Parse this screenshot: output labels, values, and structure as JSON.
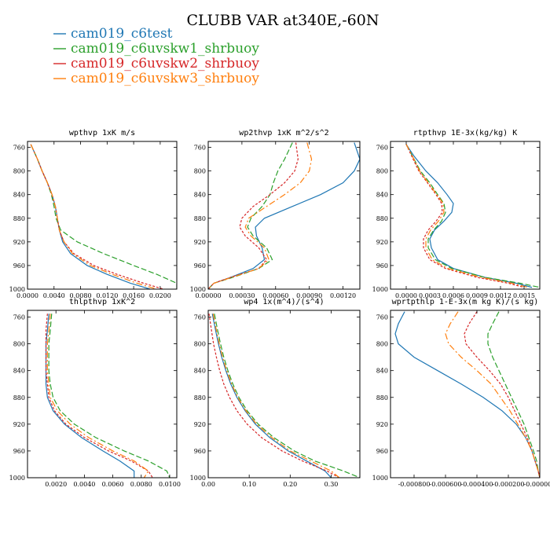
{
  "figure": {
    "title": "CLUBB VAR at340E,-60N",
    "legend": [
      {
        "label": "cam019_c6test",
        "color": "#1f77b4"
      },
      {
        "label": "cam019_c6uvskw1_shrbuoy",
        "color": "#2ca02c"
      },
      {
        "label": "cam019_c6uvskw2_shrbuoy",
        "color": "#d62728"
      },
      {
        "label": "cam019_c6uvskw3_shrbuoy",
        "color": "#ff7f0e"
      }
    ]
  },
  "chart_data": [
    {
      "type": "line",
      "title": "wpthvp  1xK m/s",
      "xlim": [
        0,
        0.0225
      ],
      "ylim": [
        1000,
        750
      ],
      "xticks": [
        {
          "value": 0.0,
          "label": "0.0000"
        },
        {
          "value": 0.004,
          "label": "0.0040"
        },
        {
          "value": 0.008,
          "label": "0.0080"
        },
        {
          "value": 0.012,
          "label": "0.0120"
        },
        {
          "value": 0.016,
          "label": "0.0160"
        },
        {
          "value": 0.02,
          "label": "0.0200"
        }
      ],
      "yticks": [
        {
          "value": 760,
          "label": "760"
        },
        {
          "value": 800,
          "label": "800"
        },
        {
          "value": 840,
          "label": "840"
        },
        {
          "value": 880,
          "label": "880"
        },
        {
          "value": 920,
          "label": "920"
        },
        {
          "value": 960,
          "label": "960"
        },
        {
          "value": 1000,
          "label": "1000"
        }
      ],
      "y": [
        755,
        780,
        800,
        820,
        840,
        860,
        880,
        900,
        920,
        940,
        960,
        975,
        990,
        1000
      ],
      "series": [
        {
          "name": "cam019_c6test",
          "x": [
            0.0005,
            0.0015,
            0.0022,
            0.003,
            0.0037,
            0.0042,
            0.0045,
            0.0048,
            0.0053,
            0.0065,
            0.009,
            0.012,
            0.0155,
            0.0185
          ]
        },
        {
          "name": "cam019_c6uvskw1_shrbuoy",
          "x": [
            0.0005,
            0.0015,
            0.0022,
            0.003,
            0.0036,
            0.004,
            0.0043,
            0.005,
            0.0075,
            0.0115,
            0.016,
            0.0195,
            0.0225,
            0.0225
          ]
        },
        {
          "name": "cam019_c6uvskw2_shrbuoy",
          "x": [
            0.0005,
            0.0015,
            0.0022,
            0.003,
            0.0037,
            0.0042,
            0.0045,
            0.0048,
            0.0055,
            0.007,
            0.01,
            0.0135,
            0.0175,
            0.0205
          ]
        },
        {
          "name": "cam019_c6uvskw3_shrbuoy",
          "x": [
            0.0005,
            0.0015,
            0.0022,
            0.003,
            0.0037,
            0.0042,
            0.0045,
            0.0048,
            0.0055,
            0.0068,
            0.0095,
            0.0128,
            0.0165,
            0.0195
          ]
        }
      ]
    },
    {
      "type": "line",
      "title": "wp2thvp  1xK m^2/s^2",
      "xlim": [
        0,
        0.00135
      ],
      "ylim": [
        1000,
        750
      ],
      "xticks": [
        {
          "value": 0.0,
          "label": "0.00000"
        },
        {
          "value": 0.0003,
          "label": "0.00030"
        },
        {
          "value": 0.0006,
          "label": "0.00060"
        },
        {
          "value": 0.0009,
          "label": "0.00090"
        },
        {
          "value": 0.0012,
          "label": "0.00120"
        }
      ],
      "yticks": [
        {
          "value": 760,
          "label": "760"
        },
        {
          "value": 800,
          "label": "800"
        },
        {
          "value": 840,
          "label": "840"
        },
        {
          "value": 880,
          "label": "880"
        },
        {
          "value": 920,
          "label": "920"
        },
        {
          "value": 960,
          "label": "960"
        },
        {
          "value": 1000,
          "label": "1000"
        }
      ],
      "y": [
        752,
        780,
        800,
        820,
        840,
        860,
        880,
        895,
        910,
        930,
        950,
        965,
        980,
        990,
        1000
      ],
      "series": [
        {
          "name": "cam019_c6test",
          "x": [
            0.0013,
            0.00135,
            0.0013,
            0.0012,
            0.001,
            0.00075,
            0.0005,
            0.00042,
            0.00043,
            0.00048,
            0.0005,
            0.0004,
            0.0002,
            5e-05,
            0.0
          ]
        },
        {
          "name": "cam019_c6uvskw1_shrbuoy",
          "x": [
            0.00075,
            0.00068,
            0.00062,
            0.00058,
            0.00055,
            0.00048,
            0.00038,
            0.00035,
            0.0004,
            0.00052,
            0.00057,
            0.00045,
            0.00022,
            5e-05,
            0.0
          ]
        },
        {
          "name": "cam019_c6uvskw2_shrbuoy",
          "x": [
            0.00078,
            0.0008,
            0.00077,
            0.00068,
            0.00055,
            0.0004,
            0.0003,
            0.00028,
            0.00033,
            0.00045,
            0.00052,
            0.00045,
            0.0002,
            5e-05,
            0.0
          ]
        },
        {
          "name": "cam019_c6uvskw3_shrbuoy",
          "x": [
            0.00088,
            0.00092,
            0.0009,
            0.00082,
            0.00068,
            0.00052,
            0.00036,
            0.00033,
            0.00038,
            0.0005,
            0.00054,
            0.00045,
            0.00021,
            5e-05,
            0.0
          ]
        }
      ]
    },
    {
      "type": "line",
      "title": "rtpthvp  1E-3x(kg/kg) K",
      "xlim": [
        -0.0002,
        0.0017
      ],
      "ylim": [
        1000,
        750
      ],
      "xticks": [
        {
          "value": 0.0,
          "label": "0.0000"
        },
        {
          "value": 0.0003,
          "label": "0.0003"
        },
        {
          "value": 0.0006,
          "label": "0.0006"
        },
        {
          "value": 0.0009,
          "label": "0.0009"
        },
        {
          "value": 0.0012,
          "label": "0.0012"
        },
        {
          "value": 0.0015,
          "label": "0.0015"
        }
      ],
      "yticks": [
        {
          "value": 760,
          "label": "760"
        },
        {
          "value": 800,
          "label": "800"
        },
        {
          "value": 840,
          "label": "840"
        },
        {
          "value": 880,
          "label": "880"
        },
        {
          "value": 920,
          "label": "920"
        },
        {
          "value": 960,
          "label": "960"
        },
        {
          "value": 1000,
          "label": "1000"
        }
      ],
      "y": [
        755,
        775,
        800,
        820,
        840,
        855,
        870,
        885,
        900,
        915,
        930,
        950,
        965,
        980,
        990,
        997
      ],
      "series": [
        {
          "name": "cam019_c6test",
          "x": [
            0.0,
            0.0001,
            0.00025,
            0.0004,
            0.00052,
            0.0006,
            0.00058,
            0.00048,
            0.00036,
            0.0003,
            0.00032,
            0.0004,
            0.0006,
            0.001,
            0.0014,
            0.0016
          ]
        },
        {
          "name": "cam019_c6uvskw1_shrbuoy",
          "x": [
            0.0,
            8e-05,
            0.00018,
            0.0003,
            0.0004,
            0.00048,
            0.0005,
            0.00045,
            0.00035,
            0.00028,
            0.00028,
            0.00037,
            0.00058,
            0.001,
            0.00145,
            0.0017
          ]
        },
        {
          "name": "cam019_c6uvskw2_shrbuoy",
          "x": [
            0.0,
            7e-05,
            0.00016,
            0.00027,
            0.00038,
            0.00045,
            0.00046,
            0.00038,
            0.00028,
            0.00022,
            0.00022,
            0.0003,
            0.0005,
            0.0009,
            0.0013,
            0.0015
          ]
        },
        {
          "name": "cam019_c6uvskw3_shrbuoy",
          "x": [
            0.0,
            8e-05,
            0.00017,
            0.00028,
            0.00039,
            0.00047,
            0.00048,
            0.00041,
            0.00031,
            0.00025,
            0.00025,
            0.00033,
            0.00053,
            0.00095,
            0.00135,
            0.00155
          ]
        }
      ]
    },
    {
      "type": "line",
      "title": "thlpthvp  1xK^2",
      "xlim": [
        0,
        0.0105
      ],
      "ylim": [
        1000,
        750
      ],
      "xticks": [
        {
          "value": 0.002,
          "label": "0.0020"
        },
        {
          "value": 0.004,
          "label": "0.0040"
        },
        {
          "value": 0.006,
          "label": "0.0060"
        },
        {
          "value": 0.008,
          "label": "0.0080"
        },
        {
          "value": 0.01,
          "label": "0.0100"
        }
      ],
      "yticks": [
        {
          "value": 760,
          "label": "760"
        },
        {
          "value": 800,
          "label": "800"
        },
        {
          "value": 840,
          "label": "840"
        },
        {
          "value": 880,
          "label": "880"
        },
        {
          "value": 920,
          "label": "920"
        },
        {
          "value": 960,
          "label": "960"
        },
        {
          "value": 1000,
          "label": "1000"
        }
      ],
      "y": [
        755,
        780,
        800,
        820,
        840,
        860,
        880,
        900,
        920,
        940,
        960,
        975,
        990,
        1000
      ],
      "series": [
        {
          "name": "cam019_c6test",
          "x": [
            0.0015,
            0.0014,
            0.0013,
            0.0013,
            0.0013,
            0.0013,
            0.0014,
            0.0018,
            0.0026,
            0.0038,
            0.0053,
            0.0065,
            0.0075,
            0.0075
          ]
        },
        {
          "name": "cam019_c6uvskw1_shrbuoy",
          "x": [
            0.0017,
            0.0016,
            0.0015,
            0.0015,
            0.0015,
            0.0016,
            0.0018,
            0.0023,
            0.0033,
            0.0048,
            0.0068,
            0.0085,
            0.0098,
            0.01
          ]
        },
        {
          "name": "cam019_c6uvskw2_shrbuoy",
          "x": [
            0.0014,
            0.0013,
            0.0013,
            0.0013,
            0.0013,
            0.0014,
            0.0015,
            0.0019,
            0.0027,
            0.004,
            0.0057,
            0.0073,
            0.0085,
            0.0088
          ]
        },
        {
          "name": "cam019_c6uvskw3_shrbuoy",
          "x": [
            0.0016,
            0.0015,
            0.0014,
            0.0014,
            0.0014,
            0.0015,
            0.0016,
            0.0021,
            0.003,
            0.0043,
            0.006,
            0.0075,
            0.0085,
            0.0082
          ]
        }
      ]
    },
    {
      "type": "line",
      "title": "wp4  1x(m^4)/(s^4)",
      "xlim": [
        0,
        0.37
      ],
      "ylim": [
        1000,
        750
      ],
      "xticks": [
        {
          "value": 0.0,
          "label": "0.00"
        },
        {
          "value": 0.1,
          "label": "0.10"
        },
        {
          "value": 0.2,
          "label": "0.20"
        },
        {
          "value": 0.3,
          "label": "0.30"
        }
      ],
      "yticks": [
        {
          "value": 760,
          "label": "760"
        },
        {
          "value": 800,
          "label": "800"
        },
        {
          "value": 840,
          "label": "840"
        },
        {
          "value": 880,
          "label": "880"
        },
        {
          "value": 920,
          "label": "920"
        },
        {
          "value": 960,
          "label": "960"
        },
        {
          "value": 1000,
          "label": "1000"
        }
      ],
      "y": [
        755,
        780,
        800,
        820,
        840,
        860,
        880,
        900,
        920,
        940,
        960,
        975,
        990,
        1000
      ],
      "series": [
        {
          "name": "cam019_c6test",
          "x": [
            0.01,
            0.018,
            0.025,
            0.033,
            0.043,
            0.055,
            0.07,
            0.09,
            0.115,
            0.15,
            0.195,
            0.24,
            0.285,
            0.3
          ]
        },
        {
          "name": "cam019_c6uvskw1_shrbuoy",
          "x": [
            0.015,
            0.023,
            0.03,
            0.038,
            0.048,
            0.06,
            0.075,
            0.095,
            0.122,
            0.16,
            0.21,
            0.26,
            0.33,
            0.37
          ]
        },
        {
          "name": "cam019_c6uvskw2_shrbuoy",
          "x": [
            0.002,
            0.008,
            0.013,
            0.02,
            0.028,
            0.038,
            0.052,
            0.07,
            0.095,
            0.13,
            0.18,
            0.23,
            0.29,
            0.32
          ]
        },
        {
          "name": "cam019_c6uvskw3_shrbuoy",
          "x": [
            0.012,
            0.02,
            0.027,
            0.035,
            0.045,
            0.057,
            0.072,
            0.092,
            0.118,
            0.155,
            0.2,
            0.25,
            0.3,
            0.32
          ]
        }
      ]
    },
    {
      "type": "line",
      "title": "wprtpthlp  1-E-3x(m kg K)/(s kg)",
      "xlim": [
        -0.00095,
        0.0
      ],
      "ylim": [
        1000,
        750
      ],
      "xticks": [
        {
          "value": -0.0008,
          "label": "-0.000800"
        },
        {
          "value": -0.0006,
          "label": "-0.000600"
        },
        {
          "value": -0.0004,
          "label": "-0.000400"
        },
        {
          "value": -0.0002,
          "label": "-0.000200"
        },
        {
          "value": 0.0,
          "label": "-0.000000"
        }
      ],
      "yticks": [
        {
          "value": 760,
          "label": "760"
        },
        {
          "value": 800,
          "label": "800"
        },
        {
          "value": 840,
          "label": "840"
        },
        {
          "value": 880,
          "label": "880"
        },
        {
          "value": 920,
          "label": "920"
        },
        {
          "value": 960,
          "label": "960"
        },
        {
          "value": 1000,
          "label": "1000"
        }
      ],
      "y": [
        752,
        770,
        785,
        800,
        820,
        840,
        860,
        880,
        900,
        920,
        940,
        960,
        975,
        990,
        1000
      ],
      "series": [
        {
          "name": "cam019_c6test",
          "x": [
            -0.00086,
            -0.0009,
            -0.00092,
            -0.0009,
            -0.0008,
            -0.00065,
            -0.0005,
            -0.00036,
            -0.00024,
            -0.00015,
            -9e-05,
            -5e-05,
            -3e-05,
            -1e-05,
            0.0
          ]
        },
        {
          "name": "cam019_c6uvskw1_shrbuoy",
          "x": [
            -0.00026,
            -0.0003,
            -0.00033,
            -0.00033,
            -0.0003,
            -0.00026,
            -0.00022,
            -0.00018,
            -0.00014,
            -0.0001,
            -7e-05,
            -4e-05,
            -2e-05,
            -1e-05,
            0.0
          ]
        },
        {
          "name": "cam019_c6uvskw2_shrbuoy",
          "x": [
            -0.0004,
            -0.00045,
            -0.00048,
            -0.00047,
            -0.0004,
            -0.00032,
            -0.00025,
            -0.0002,
            -0.00016,
            -0.00012,
            -8e-05,
            -5e-05,
            -3e-05,
            -1e-05,
            0.0
          ]
        },
        {
          "name": "cam019_c6uvskw3_shrbuoy",
          "x": [
            -0.00052,
            -0.00057,
            -0.0006,
            -0.00058,
            -0.0005,
            -0.0004,
            -0.00031,
            -0.00025,
            -0.00019,
            -0.00014,
            -9e-05,
            -5e-05,
            -3e-05,
            -1e-05,
            0.0
          ]
        }
      ]
    }
  ]
}
